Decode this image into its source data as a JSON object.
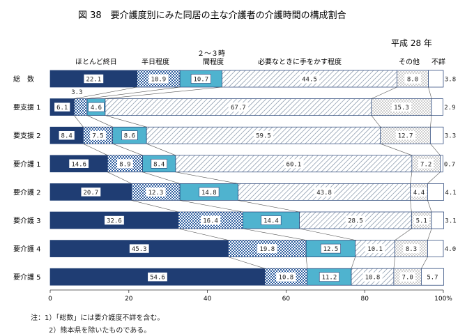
{
  "title": "図 38　要介護度別にみた同居の主な介護者の介護時間の構成割合",
  "year_label": "平成 28 年",
  "notes": [
    "注：1）「総数」には要介護度不詳を含む。",
    "2）熊本県を除いたものである。"
  ],
  "colors": {
    "c0": "#1f3d73",
    "c1": "#2f5fa0",
    "c2": "#4fb3cf",
    "c3": "#ffffff",
    "c4": "#ffffff",
    "c5": "#ffffff"
  },
  "chart_data": {
    "type": "bar",
    "orientation": "horizontal",
    "stacked": true,
    "title": "図 38　要介護度別にみた同居の主な介護者の介護時間の構成割合",
    "xlim": [
      0,
      100
    ],
    "x_ticks": [
      "0",
      "20",
      "40",
      "60",
      "80",
      "100%"
    ],
    "categories": [
      "総　数",
      "要支援 1",
      "要支援 2",
      "要介護 1",
      "要介護 2",
      "要介護 3",
      "要介護 4",
      "要介護 5"
    ],
    "series": [
      {
        "name": "ほとんど終日",
        "values": [
          22.1,
          6.1,
          8.4,
          14.6,
          20.7,
          32.6,
          45.3,
          54.6
        ]
      },
      {
        "name": "半日程度",
        "values": [
          10.9,
          3.3,
          7.5,
          8.9,
          12.3,
          16.4,
          19.8,
          10.8
        ]
      },
      {
        "name": "２～３時間程度",
        "values": [
          10.7,
          4.6,
          8.6,
          8.4,
          14.8,
          14.4,
          12.5,
          11.2
        ]
      },
      {
        "name": "必要なときに手をかす程度",
        "values": [
          44.5,
          67.7,
          59.5,
          60.1,
          43.8,
          28.5,
          10.1,
          10.8
        ]
      },
      {
        "name": "その他",
        "values": [
          8.0,
          15.3,
          12.7,
          7.2,
          4.4,
          5.1,
          8.3,
          7.0
        ]
      },
      {
        "name": "不詳",
        "values": [
          3.8,
          2.9,
          3.3,
          0.7,
          4.1,
          3.1,
          4.0,
          5.7
        ]
      }
    ]
  }
}
